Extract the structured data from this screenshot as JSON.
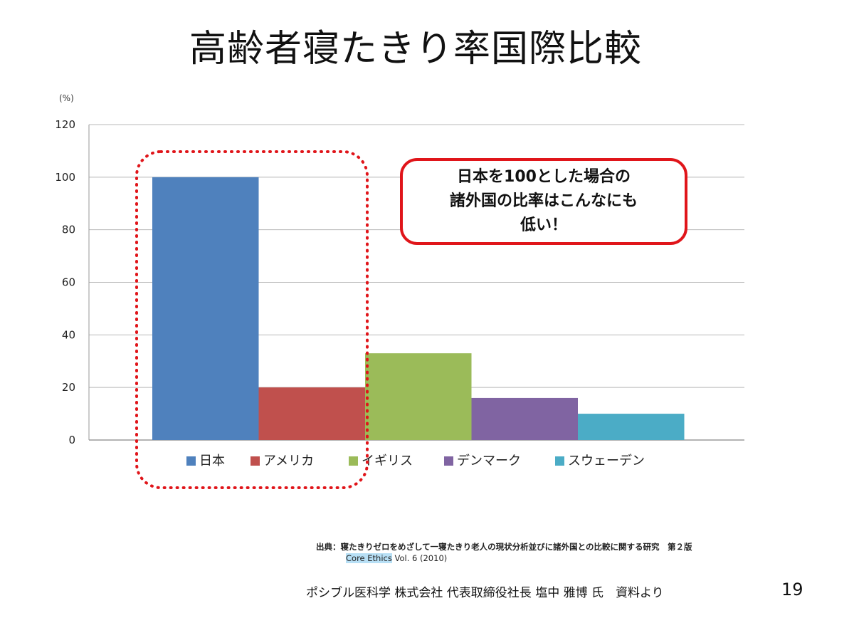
{
  "title": "高齢者寝たきり率国際比較",
  "chart_data": {
    "type": "bar",
    "unit_label": "(%)",
    "categories": [
      "日本",
      "アメリカ",
      "イギリス",
      "デンマーク",
      "スウェーデン"
    ],
    "values": [
      100,
      20,
      33,
      16,
      10
    ],
    "colors": [
      "#4f81bd",
      "#c0504d",
      "#9bbb59",
      "#8064a2",
      "#4bacc6"
    ],
    "ylim": [
      0,
      120
    ],
    "yticks": [
      0,
      20,
      40,
      60,
      80,
      100,
      120
    ],
    "grid": true,
    "legend_position": "bottom",
    "highlight_color": "#e0151a"
  },
  "callout": {
    "text": "日本を100とした場合の\n諸外国の比率はこんなにも\n低い！"
  },
  "source": {
    "line1": "出典：寝たきりゼロをめざして一寝たきり老人の現状分析並びに諸外国との比較に関する研究　第２版",
    "line2_highlight": "Core Ethics",
    "line2_rest": " Vol. 6 (2010)"
  },
  "footer": {
    "text": "ポシブル医科学 株式会社 代表取締役社長 塩中 雅博 氏　資料より",
    "page_number": "19"
  }
}
